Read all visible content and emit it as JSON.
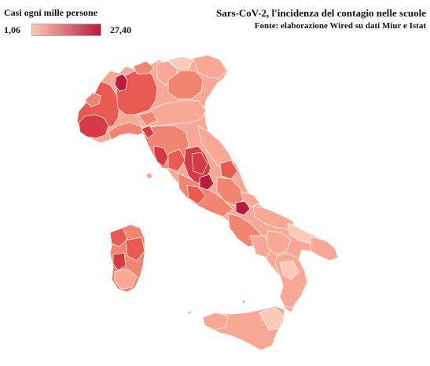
{
  "header": {
    "title": "Sars-CoV-2, l'incidenza del contagio nelle scuole",
    "source": "Fonte: elaborazione Wired su dati Miur e Istat"
  },
  "legend": {
    "title": "Casi ogni mille persone",
    "min_label": "1,06",
    "max_label": "27,40",
    "min_value": 1.06,
    "max_value": 27.4,
    "color_low": "#fbc7b5",
    "color_high": "#b71c3a"
  },
  "map": {
    "region": "Italia",
    "colors": {
      "very_low": "#fbc9b8",
      "low": "#f8a894",
      "mid": "#f28472",
      "high": "#e85a52",
      "very_high": "#d63a44",
      "max": "#b71c3a"
    }
  }
}
